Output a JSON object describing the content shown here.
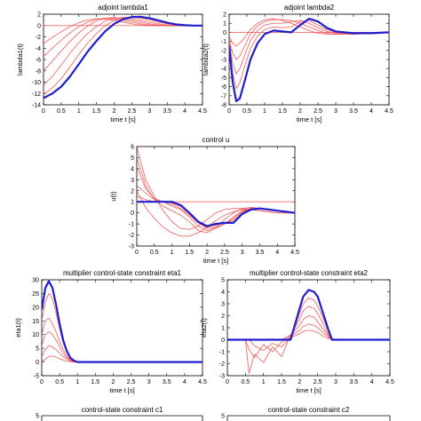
{
  "colors": {
    "blue": "#1f1fcf",
    "red": "#f04848",
    "axis": "#000000"
  },
  "chart_data": [
    {
      "id": "lambda1",
      "type": "line",
      "title": "adjoint lambda1",
      "xlabel": "time t [s]",
      "ylabel": "lambda1(t)",
      "xlim": [
        0,
        4.5
      ],
      "ylim": [
        -14,
        2
      ],
      "xticks": [
        0,
        0.5,
        1,
        1.5,
        2,
        2.5,
        3,
        3.5,
        4,
        4.5
      ],
      "yticks": [
        -14,
        -12,
        -10,
        -8,
        -6,
        -4,
        -2,
        0,
        2
      ],
      "x": [
        0,
        0.25,
        0.5,
        0.75,
        1.0,
        1.25,
        1.5,
        1.75,
        2.0,
        2.25,
        2.5,
        2.75,
        3.0,
        3.25,
        3.5,
        3.75,
        4.0,
        4.25,
        4.5
      ],
      "series": [
        {
          "role": "final",
          "color": "blue",
          "values": [
            -12.8,
            -12.0,
            -10.8,
            -9.0,
            -6.8,
            -4.6,
            -2.7,
            -1.0,
            0.3,
            1.1,
            1.5,
            1.55,
            1.3,
            0.9,
            0.5,
            0.2,
            0.05,
            0.0,
            0.0
          ]
        },
        {
          "role": "iteration",
          "color": "red",
          "values": [
            -12.2,
            -11.0,
            -9.4,
            -7.3,
            -5.1,
            -3.1,
            -1.4,
            0.0,
            0.9,
            1.4,
            1.5,
            1.3,
            1.0,
            0.6,
            0.3,
            0.1,
            0.0,
            0.0,
            0.0
          ]
        },
        {
          "role": "iteration",
          "color": "red",
          "values": [
            -10.5,
            -9.0,
            -7.0,
            -4.9,
            -3.0,
            -1.4,
            -0.2,
            0.8,
            1.3,
            1.4,
            1.2,
            0.9,
            0.6,
            0.3,
            0.1,
            0.0,
            0.0,
            0.0,
            0.0
          ]
        },
        {
          "role": "iteration",
          "color": "red",
          "values": [
            -8.0,
            -6.3,
            -4.5,
            -2.8,
            -1.3,
            -0.1,
            0.8,
            1.3,
            1.4,
            1.2,
            0.9,
            0.6,
            0.3,
            0.1,
            0.0,
            0.0,
            0.0,
            0.0,
            0.0
          ]
        },
        {
          "role": "iteration",
          "color": "red",
          "values": [
            -5.5,
            -4.0,
            -2.6,
            -1.3,
            -0.2,
            0.6,
            1.1,
            1.3,
            1.2,
            0.9,
            0.6,
            0.3,
            0.1,
            0.0,
            0.0,
            0.0,
            0.0,
            0.0,
            0.0
          ]
        },
        {
          "role": "iteration",
          "color": "red",
          "values": [
            -3.2,
            -2.1,
            -1.1,
            -0.2,
            0.5,
            1.0,
            1.2,
            1.1,
            0.9,
            0.6,
            0.3,
            0.1,
            0.0,
            0.0,
            0.0,
            0.0,
            0.0,
            0.0,
            0.0
          ]
        },
        {
          "role": "iteration",
          "color": "red",
          "values": [
            0,
            0,
            0,
            0,
            0,
            0,
            0,
            0,
            0,
            0,
            0,
            0,
            0,
            0,
            0,
            0,
            0,
            0,
            0
          ]
        }
      ]
    },
    {
      "id": "lambda2",
      "type": "line",
      "title": "adjoint lambda2",
      "xlabel": "time t [s]",
      "ylabel": "lambda2(t)",
      "xlim": [
        0,
        4.5
      ],
      "ylim": [
        -8,
        2
      ],
      "xticks": [
        0,
        0.5,
        1,
        1.5,
        2,
        2.5,
        3,
        3.5,
        4,
        4.5
      ],
      "yticks": [
        -8,
        -7,
        -6,
        -5,
        -4,
        -3,
        -2,
        -1,
        0,
        1,
        2
      ],
      "x": [
        0,
        0.1,
        0.2,
        0.3,
        0.45,
        0.6,
        0.8,
        1.0,
        1.25,
        1.5,
        1.75,
        2.0,
        2.25,
        2.5,
        2.75,
        3.0,
        3.5,
        4.0,
        4.5
      ],
      "series": [
        {
          "role": "final",
          "color": "blue",
          "values": [
            -1.5,
            -5.5,
            -7.6,
            -7.3,
            -5.2,
            -3.0,
            -1.2,
            -0.2,
            0.2,
            0.1,
            0.0,
            0.8,
            1.5,
            1.2,
            0.5,
            0.1,
            -0.1,
            -0.1,
            0.0
          ]
        },
        {
          "role": "iteration",
          "color": "red",
          "values": [
            -1.2,
            -4.5,
            -6.2,
            -5.6,
            -3.6,
            -1.8,
            -0.4,
            0.3,
            0.6,
            0.5,
            0.6,
            1.2,
            1.3,
            0.8,
            0.3,
            0.0,
            -0.2,
            -0.1,
            0.0
          ]
        },
        {
          "role": "iteration",
          "color": "red",
          "values": [
            -1.0,
            -3.4,
            -4.6,
            -4.0,
            -2.4,
            -0.9,
            0.2,
            0.8,
            1.0,
            1.0,
            1.2,
            1.3,
            1.0,
            0.5,
            0.1,
            -0.1,
            -0.2,
            -0.1,
            0.0
          ]
        },
        {
          "role": "iteration",
          "color": "red",
          "values": [
            -0.8,
            -2.3,
            -3.0,
            -2.6,
            -1.4,
            -0.2,
            0.7,
            1.2,
            1.4,
            1.4,
            1.3,
            1.0,
            0.6,
            0.2,
            -0.1,
            -0.2,
            -0.2,
            -0.1,
            0.0
          ]
        },
        {
          "role": "iteration",
          "color": "red",
          "values": [
            -0.5,
            -1.2,
            -1.5,
            -1.2,
            -0.5,
            0.3,
            1.0,
            1.4,
            1.5,
            1.3,
            1.0,
            0.6,
            0.2,
            -0.1,
            -0.2,
            -0.2,
            -0.1,
            0.0,
            0.0
          ]
        },
        {
          "role": "iteration",
          "color": "red",
          "values": [
            0,
            0,
            0,
            0,
            0,
            0,
            0,
            0,
            0,
            0,
            0,
            0,
            0,
            0,
            0,
            0,
            0,
            0,
            0
          ]
        }
      ]
    },
    {
      "id": "control",
      "type": "line",
      "title": "control u",
      "xlabel": "time t [s]",
      "ylabel": "u(t)",
      "xlim": [
        0,
        4.5
      ],
      "ylim": [
        -3,
        6
      ],
      "xticks": [
        0,
        0.5,
        1,
        1.5,
        2,
        2.5,
        3,
        3.5,
        4,
        4.5
      ],
      "yticks": [
        -3,
        -2,
        -1,
        0,
        1,
        2,
        3,
        4,
        5,
        6
      ],
      "x": [
        0,
        0.25,
        0.5,
        0.75,
        1.0,
        1.25,
        1.5,
        1.75,
        2.0,
        2.25,
        2.5,
        2.75,
        3.0,
        3.25,
        3.5,
        3.75,
        4.0,
        4.25,
        4.5
      ],
      "series": [
        {
          "role": "final",
          "color": "blue",
          "values": [
            1.0,
            1.0,
            1.0,
            1.0,
            1.0,
            0.7,
            0.0,
            -0.8,
            -1.2,
            -1.0,
            -0.9,
            -0.9,
            -0.1,
            0.3,
            0.4,
            0.3,
            0.2,
            0.1,
            0.0
          ]
        },
        {
          "role": "iteration",
          "color": "red",
          "values": [
            1.0,
            1.0,
            1.0,
            1.0,
            1.0,
            1.0,
            1.0,
            1.0,
            1.0,
            1.0,
            1.0,
            1.0,
            1.0,
            1.0,
            1.0,
            1.0,
            1.0,
            1.0,
            1.0
          ]
        },
        {
          "role": "iteration",
          "color": "red",
          "values": [
            6.0,
            3.0,
            1.5,
            0.2,
            -0.8,
            -1.4,
            -1.5,
            -1.2,
            -0.6,
            0.0,
            0.3,
            0.4,
            0.4,
            0.3,
            0.2,
            0.1,
            0.0,
            0.0,
            0.0
          ]
        },
        {
          "role": "iteration",
          "color": "red",
          "values": [
            5.0,
            2.5,
            1.2,
            0.6,
            0.2,
            -0.2,
            -0.8,
            -1.6,
            -1.8,
            -1.3,
            -0.6,
            0.0,
            0.4,
            0.5,
            0.4,
            0.3,
            0.2,
            0.1,
            0.0
          ]
        },
        {
          "role": "iteration",
          "color": "red",
          "values": [
            4.2,
            2.2,
            1.3,
            1.0,
            0.6,
            0.3,
            -0.4,
            -1.2,
            -1.6,
            -1.4,
            -1.0,
            -0.4,
            0.2,
            0.4,
            0.4,
            0.3,
            0.2,
            0.1,
            0.0
          ]
        },
        {
          "role": "iteration",
          "color": "red",
          "values": [
            2.5,
            1.8,
            1.2,
            1.0,
            0.8,
            0.4,
            -0.2,
            -0.9,
            -1.4,
            -1.3,
            -1.0,
            -0.5,
            0.1,
            0.4,
            0.4,
            0.3,
            0.2,
            0.1,
            0.0
          ]
        },
        {
          "role": "iteration",
          "color": "red",
          "values": [
            1.5,
            1.2,
            1.0,
            1.0,
            0.9,
            0.6,
            -0.1,
            -0.9,
            -1.3,
            -1.1,
            -0.9,
            -0.7,
            0.0,
            0.4,
            0.4,
            0.3,
            0.2,
            0.1,
            0.0
          ]
        },
        {
          "role": "iteration",
          "color": "red",
          "values": [
            2.0,
            0.5,
            -0.5,
            -1.3,
            -1.8,
            -2.1,
            -2.1,
            -1.8,
            -1.3,
            -0.7,
            -0.2,
            0.1,
            0.3,
            0.3,
            0.2,
            0.1,
            0.0,
            0.0,
            0.0
          ]
        }
      ]
    },
    {
      "id": "eta1",
      "type": "line",
      "title": "multiplier control-state constraint eta1",
      "xlabel": "time t [s]",
      "ylabel": "eta1(t)",
      "xlim": [
        0,
        4.5
      ],
      "ylim": [
        -5,
        30
      ],
      "xticks": [
        0,
        0.5,
        1,
        1.5,
        2,
        2.5,
        3,
        3.5,
        4,
        4.5
      ],
      "yticks": [
        -5,
        0,
        5,
        10,
        15,
        20,
        25,
        30
      ],
      "x": [
        0,
        0.1,
        0.2,
        0.3,
        0.4,
        0.5,
        0.6,
        0.7,
        0.8,
        0.9,
        1.0,
        1.2,
        1.5,
        2.0,
        2.5,
        3.0,
        3.5,
        4.0,
        4.5
      ],
      "series": [
        {
          "role": "final",
          "color": "blue",
          "values": [
            19.0,
            27.0,
            29.5,
            27.0,
            21.0,
            14.0,
            8.0,
            4.0,
            1.5,
            0.5,
            0.0,
            0.0,
            0.0,
            0.0,
            0.0,
            0.0,
            0.0,
            0.0,
            0.0
          ]
        },
        {
          "role": "iteration",
          "color": "red",
          "values": [
            15.0,
            22.0,
            25.0,
            23.0,
            18.0,
            12.0,
            7.0,
            3.5,
            1.2,
            0.3,
            0.0,
            0.0,
            0.0,
            0.0,
            0.0,
            0.0,
            0.0,
            0.0,
            0.0
          ]
        },
        {
          "role": "iteration",
          "color": "red",
          "values": [
            10.0,
            15.0,
            16.0,
            14.0,
            11.0,
            7.5,
            4.5,
            2.2,
            0.8,
            0.2,
            0.0,
            0.0,
            0.0,
            0.0,
            0.0,
            0.0,
            0.0,
            0.0,
            0.0
          ]
        },
        {
          "role": "iteration",
          "color": "red",
          "values": [
            6.0,
            10.0,
            11.0,
            10.0,
            8.0,
            5.5,
            3.2,
            1.6,
            0.6,
            0.1,
            0.0,
            0.0,
            0.0,
            0.0,
            0.0,
            0.0,
            0.0,
            0.0,
            0.0
          ]
        },
        {
          "role": "iteration",
          "color": "red",
          "values": [
            2.0,
            4.5,
            6.0,
            5.5,
            4.5,
            3.2,
            2.0,
            1.0,
            0.4,
            0.1,
            0.0,
            0.0,
            0.0,
            0.0,
            0.0,
            0.0,
            0.0,
            0.0,
            0.0
          ]
        },
        {
          "role": "iteration",
          "color": "red",
          "values": [
            0.0,
            1.0,
            2.0,
            2.2,
            1.8,
            1.2,
            0.7,
            0.3,
            0.1,
            0.0,
            0.0,
            0.0,
            0.0,
            0.0,
            0.0,
            0.0,
            0.0,
            0.0,
            0.0
          ]
        }
      ]
    },
    {
      "id": "eta2",
      "type": "line",
      "title": "multiplier control-state constraint eta2",
      "xlabel": "time t [s]",
      "ylabel": "eta2(t)",
      "xlim": [
        0,
        4.5
      ],
      "ylim": [
        -3,
        5
      ],
      "xticks": [
        0,
        0.5,
        1,
        1.5,
        2,
        2.5,
        3,
        3.5,
        4,
        4.5
      ],
      "yticks": [
        -3,
        -2,
        -1,
        0,
        1,
        2,
        3,
        4,
        5
      ],
      "x": [
        0,
        0.5,
        0.6,
        0.75,
        1.0,
        1.25,
        1.5,
        1.75,
        2.0,
        2.1,
        2.25,
        2.4,
        2.5,
        2.65,
        2.8,
        2.9,
        3.0,
        3.5,
        4.0,
        4.5
      ],
      "series": [
        {
          "role": "final",
          "color": "blue",
          "values": [
            0,
            0,
            0,
            0,
            0,
            0,
            0,
            0,
            2.6,
            3.6,
            4.15,
            4.0,
            3.6,
            2.2,
            0.8,
            0.0,
            0,
            0,
            0,
            0
          ]
        },
        {
          "role": "iteration",
          "color": "red",
          "values": [
            0,
            0,
            0,
            0,
            0,
            0,
            0,
            0,
            2.2,
            3.0,
            3.5,
            3.3,
            2.8,
            1.8,
            0.6,
            0.0,
            0,
            0,
            0,
            0
          ]
        },
        {
          "role": "iteration",
          "color": "red",
          "values": [
            0,
            0,
            0,
            0,
            0,
            0,
            0,
            0.4,
            1.7,
            2.4,
            2.8,
            2.6,
            2.2,
            1.3,
            0.4,
            0.0,
            0,
            0,
            0,
            0
          ]
        },
        {
          "role": "iteration",
          "color": "red",
          "values": [
            0,
            0,
            -2.8,
            -1.2,
            -1.9,
            -0.6,
            -1.4,
            0.4,
            1.2,
            1.7,
            2.0,
            1.9,
            1.5,
            0.9,
            0.3,
            0.0,
            0,
            0,
            0,
            0
          ]
        },
        {
          "role": "iteration",
          "color": "red",
          "values": [
            0,
            0,
            -0.8,
            -1.5,
            -0.4,
            -1.0,
            -0.2,
            0.3,
            0.8,
            1.1,
            1.3,
            1.2,
            1.0,
            0.6,
            0.2,
            0.0,
            0,
            0,
            0,
            0
          ]
        },
        {
          "role": "iteration",
          "color": "red",
          "values": [
            0,
            0,
            0,
            -0.5,
            -0.9,
            -0.3,
            -0.6,
            0.2,
            0.5,
            0.7,
            0.8,
            0.7,
            0.6,
            0.3,
            0.1,
            0.0,
            0,
            0,
            0,
            0
          ]
        }
      ]
    }
  ],
  "partial_panels": [
    {
      "id": "c1",
      "title": "control-state constraint c1",
      "ytick": "5"
    },
    {
      "id": "c2",
      "title": "control-state constraint c2",
      "ytick": "5"
    }
  ]
}
